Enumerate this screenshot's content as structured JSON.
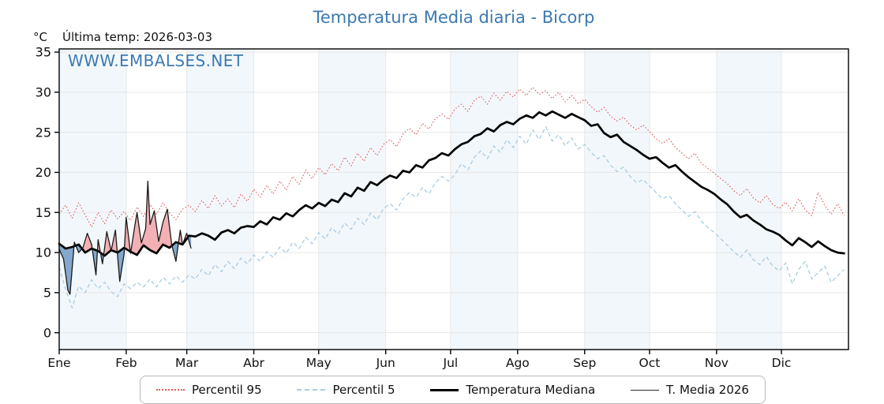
{
  "title": "Temperatura Media diaria - Bicorp",
  "unit_label": "°C",
  "last_temp_label": "Última temp: 2026-03-03",
  "watermark": "WWW.EMBALSES.NET",
  "colors": {
    "title": "#3b79b0",
    "watermark": "#3c7ab3",
    "p95": "#e05c5c",
    "p5": "#a7cde2",
    "median": "#000000",
    "t2026": "#1a1a1a",
    "fill_above": "#f3b1b5",
    "fill_below": "#84a8cd",
    "month_band": "#f2f7fb",
    "grid": "#e7e7e7",
    "frame": "#000000"
  },
  "legend": {
    "items": [
      {
        "label": "Percentil 95",
        "sample": "dotted-red"
      },
      {
        "label": "Percentil 5",
        "sample": "dashed-blue"
      },
      {
        "label": "Temperatura Mediana",
        "sample": "thick-black"
      },
      {
        "label": "T. Media 2026",
        "sample": "thin-black"
      }
    ]
  },
  "chart_data": {
    "type": "line",
    "title": "Temperatura Media diaria - Bicorp",
    "ylabel": "°C",
    "ylim": [
      -2.1,
      35.4
    ],
    "yticks": [
      0,
      5,
      10,
      15,
      20,
      25,
      30,
      35
    ],
    "grid": true,
    "legend_position": "bottom",
    "x_axis": {
      "tick_labels": [
        "Ene",
        "Feb",
        "Mar",
        "Abr",
        "May",
        "Jun",
        "Jul",
        "Ago",
        "Sep",
        "Oct",
        "Nov",
        "Dic"
      ],
      "tick_days": [
        0,
        31,
        59,
        90,
        120,
        151,
        181,
        212,
        243,
        273,
        304,
        334
      ],
      "days_in_year": 365
    },
    "shaded_month_indices": [
      0,
      2,
      4,
      6,
      8,
      10
    ],
    "series": [
      {
        "name": "Percentil 95",
        "style": "dotted",
        "color": "#e05c5c",
        "width": 1.1,
        "x_step": 3,
        "values": [
          14.8,
          15.9,
          14.3,
          16.2,
          14.7,
          13.2,
          15.0,
          13.6,
          15.3,
          14.2,
          15.1,
          14.0,
          15.7,
          14.5,
          16.0,
          14.8,
          16.2,
          15.0,
          14.1,
          15.4,
          15.9,
          15.1,
          16.5,
          15.5,
          17.1,
          15.8,
          16.7,
          15.6,
          17.3,
          16.4,
          17.9,
          16.9,
          18.4,
          17.3,
          18.9,
          17.8,
          19.5,
          18.5,
          20.3,
          19.2,
          20.6,
          19.7,
          21.1,
          20.2,
          21.9,
          20.8,
          22.4,
          21.4,
          23.1,
          22.1,
          23.5,
          24.1,
          23.2,
          24.8,
          25.5,
          24.7,
          26.1,
          25.4,
          26.7,
          27.3,
          26.6,
          27.9,
          28.5,
          27.6,
          29.0,
          29.5,
          28.5,
          29.9,
          29.0,
          30.1,
          29.4,
          30.4,
          29.6,
          30.6,
          29.7,
          30.2,
          29.2,
          30.0,
          28.8,
          29.6,
          28.6,
          29.1,
          28.2,
          27.5,
          28.1,
          27.0,
          26.4,
          26.9,
          25.9,
          25.3,
          25.9,
          25.1,
          24.2,
          23.6,
          24.2,
          23.1,
          22.4,
          21.7,
          22.4,
          21.1,
          20.5,
          19.9,
          19.2,
          18.6,
          17.7,
          17.1,
          18.0,
          16.8,
          16.2,
          17.1,
          16.0,
          15.5,
          16.3,
          15.2,
          16.7,
          15.3,
          14.6,
          17.5,
          15.9,
          14.8,
          16.1,
          14.6
        ]
      },
      {
        "name": "Percentil 5",
        "style": "dashed",
        "color": "#a7cde2",
        "width": 1.3,
        "x_step": 3,
        "values": [
          8.2,
          5.4,
          3.1,
          5.8,
          5.0,
          6.6,
          5.5,
          6.3,
          5.1,
          4.5,
          6.1,
          5.5,
          6.3,
          5.7,
          6.7,
          5.7,
          6.9,
          6.1,
          7.1,
          6.3,
          7.2,
          6.7,
          7.9,
          7.1,
          8.5,
          7.6,
          8.9,
          8.0,
          9.3,
          8.6,
          9.7,
          8.9,
          10.1,
          9.4,
          10.7,
          9.9,
          11.3,
          10.5,
          11.9,
          11.1,
          12.5,
          11.7,
          13.1,
          12.3,
          13.7,
          12.9,
          14.3,
          13.5,
          14.9,
          14.1,
          15.5,
          16.1,
          15.3,
          16.7,
          17.5,
          16.9,
          18.1,
          17.3,
          18.7,
          19.5,
          18.9,
          19.7,
          21.1,
          20.3,
          21.9,
          22.7,
          21.7,
          23.3,
          22.5,
          24.1,
          23.1,
          24.5,
          23.5,
          25.3,
          24.1,
          25.7,
          23.9,
          24.7,
          23.3,
          24.3,
          22.9,
          23.5,
          22.5,
          21.7,
          22.1,
          20.9,
          20.1,
          20.7,
          19.5,
          18.7,
          19.1,
          18.3,
          17.5,
          16.7,
          17.1,
          16.1,
          15.3,
          14.5,
          15.1,
          13.9,
          13.1,
          12.5,
          11.7,
          10.9,
          10.1,
          9.4,
          10.3,
          9.1,
          8.5,
          9.5,
          8.3,
          7.7,
          8.7,
          6.1,
          7.9,
          8.9,
          6.7,
          7.5,
          8.3,
          6.3,
          7.1,
          7.9
        ]
      },
      {
        "name": "Temperatura Mediana",
        "style": "solid",
        "color": "#000000",
        "width": 2.7,
        "x_step": 3,
        "values": [
          11.1,
          10.5,
          10.7,
          11.0,
          10.0,
          10.5,
          10.2,
          9.6,
          10.3,
          10.0,
          10.6,
          10.1,
          9.7,
          10.9,
          10.3,
          9.9,
          11.0,
          10.6,
          11.3,
          11.0,
          12.1,
          12.0,
          12.4,
          12.1,
          11.6,
          12.5,
          12.8,
          12.4,
          13.1,
          13.3,
          13.2,
          13.9,
          13.5,
          14.4,
          14.1,
          14.9,
          14.5,
          15.3,
          15.9,
          15.5,
          16.2,
          15.8,
          16.6,
          16.3,
          17.4,
          17.0,
          18.1,
          17.7,
          18.8,
          18.4,
          19.1,
          19.6,
          19.3,
          20.2,
          20.0,
          20.9,
          20.6,
          21.5,
          21.8,
          22.4,
          22.1,
          22.9,
          23.5,
          23.8,
          24.5,
          24.8,
          25.5,
          25.1,
          25.9,
          26.3,
          26.0,
          26.7,
          27.1,
          26.8,
          27.5,
          27.1,
          27.6,
          27.2,
          26.8,
          27.3,
          26.9,
          26.5,
          25.8,
          26.0,
          24.9,
          24.4,
          24.7,
          23.8,
          23.3,
          22.8,
          22.2,
          21.7,
          21.9,
          21.2,
          20.6,
          20.9,
          20.1,
          19.4,
          18.8,
          18.2,
          17.8,
          17.3,
          16.6,
          16.0,
          15.1,
          14.4,
          14.7,
          14.0,
          13.5,
          12.9,
          12.6,
          12.2,
          11.5,
          10.9,
          11.8,
          11.3,
          10.7,
          11.4,
          10.8,
          10.3,
          10.0,
          9.9
        ]
      },
      {
        "name": "T. Media 2026",
        "style": "solid",
        "color": "#1a1a1a",
        "width": 1.3,
        "days": [
          0,
          2,
          4,
          5,
          7,
          9,
          11,
          13,
          15,
          17,
          18,
          20,
          22,
          24,
          26,
          28,
          30,
          31,
          33,
          35,
          36,
          38,
          40,
          41,
          42,
          44,
          46,
          48,
          50,
          52,
          54,
          56,
          57,
          59,
          61
        ],
        "values": [
          10.4,
          9.2,
          5.3,
          4.8,
          11.3,
          10.0,
          10.6,
          12.4,
          11.0,
          7.2,
          11.6,
          8.6,
          12.6,
          10.2,
          12.8,
          6.4,
          9.8,
          14.4,
          9.9,
          13.4,
          15.0,
          11.2,
          13.0,
          18.9,
          13.5,
          15.2,
          11.4,
          13.8,
          15.4,
          11.0,
          8.9,
          12.8,
          11.0,
          12.4,
          10.5
        ],
        "fill_vs": "Temperatura Mediana",
        "fill_above_color": "#f3b1b5",
        "fill_below_color": "#84a8cd"
      }
    ]
  }
}
